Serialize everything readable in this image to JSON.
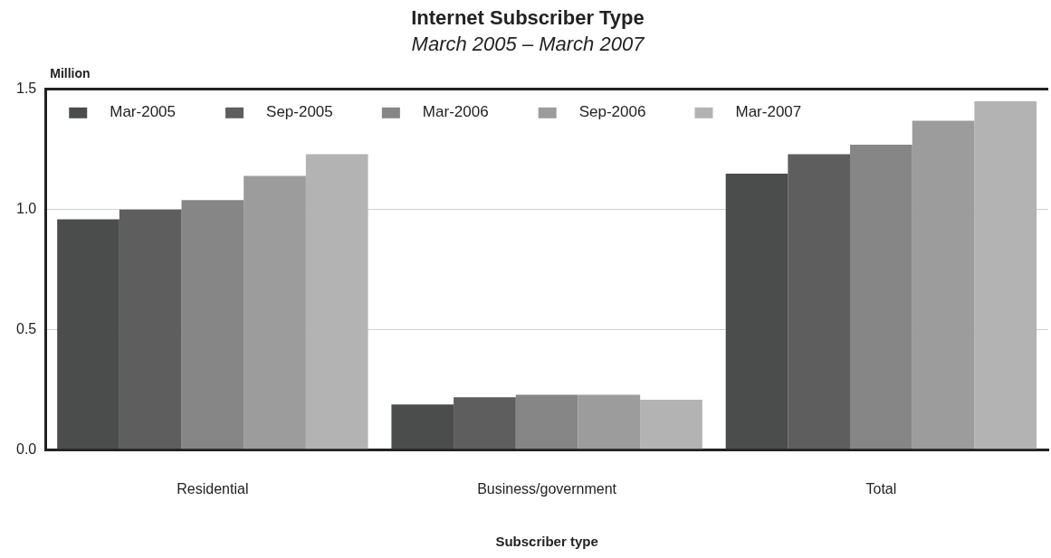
{
  "chart_data": {
    "type": "bar",
    "title": "Internet Subscriber Type",
    "subtitle": "March 2005 – March 2007",
    "xlabel": "Subscriber type",
    "ylabel": "Million",
    "categories": [
      "Residential",
      "Business/government",
      "Total"
    ],
    "series": [
      {
        "name": "Mar-2005",
        "color": "#4b4d4c",
        "values": [
          0.96,
          0.19,
          1.15
        ]
      },
      {
        "name": "Sep-2005",
        "color": "#5e5e5e",
        "values": [
          1.0,
          0.22,
          1.23
        ]
      },
      {
        "name": "Mar-2006",
        "color": "#868686",
        "values": [
          1.04,
          0.23,
          1.27
        ]
      },
      {
        "name": "Sep-2006",
        "color": "#9c9c9c",
        "values": [
          1.14,
          0.23,
          1.37
        ]
      },
      {
        "name": "Mar-2007",
        "color": "#b3b3b3",
        "values": [
          1.23,
          0.21,
          1.45
        ]
      }
    ],
    "ylim": [
      0,
      1.5
    ],
    "yticks": [
      {
        "value": 0,
        "label": "0.0"
      },
      {
        "value": 0.5,
        "label": "0.5"
      },
      {
        "value": 1,
        "label": "1.0"
      },
      {
        "value": 1.5,
        "label": "1.5"
      }
    ],
    "grid": "y",
    "legend": "top left"
  }
}
